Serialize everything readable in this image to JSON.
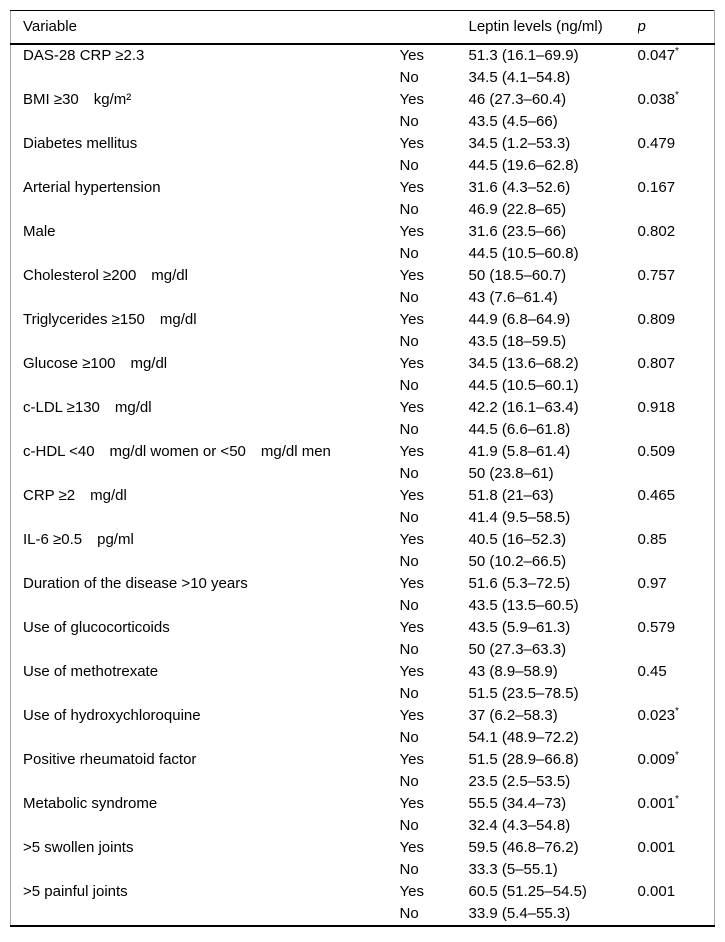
{
  "table": {
    "header": {
      "variable": "Variable",
      "yesno": "",
      "leptin": "Leptin levels (ng/ml)",
      "p": "p"
    },
    "labels": {
      "yes": "Yes",
      "no": "No"
    },
    "rows": [
      {
        "variable": "DAS-28 CRP ≥2.3",
        "yes_value": "51.3 (16.1–69.9)",
        "no_value": "34.5 (4.1–54.8)",
        "p": "0.047",
        "star": "*"
      },
      {
        "variable": "BMI ≥30 kg/m²",
        "yes_value": "46 (27.3–60.4)",
        "no_value": "43.5 (4.5–66)",
        "p": "0.038",
        "star": "*"
      },
      {
        "variable": "Diabetes mellitus",
        "yes_value": "34.5 (1.2–53.3)",
        "no_value": "44.5 (19.6–62.8)",
        "p": "0.479"
      },
      {
        "variable": "Arterial hypertension",
        "yes_value": "31.6 (4.3–52.6)",
        "no_value": "46.9 (22.8–65)",
        "p": "0.167"
      },
      {
        "variable": "Male",
        "yes_value": "31.6 (23.5–66)",
        "no_value": "44.5 (10.5–60.8)",
        "p": "0.802"
      },
      {
        "variable": "Cholesterol ≥200 mg/dl",
        "yes_value": "50 (18.5–60.7)",
        "no_value": "43 (7.6–61.4)",
        "p": "0.757"
      },
      {
        "variable": "Triglycerides ≥150 mg/dl",
        "yes_value": "44.9 (6.8–64.9)",
        "no_value": "43.5 (18–59.5)",
        "p": "0.809"
      },
      {
        "variable": "Glucose ≥100 mg/dl",
        "yes_value": "34.5 (13.6–68.2)",
        "no_value": "44.5 (10.5–60.1)",
        "p": "0.807"
      },
      {
        "variable": "c-LDL ≥130 mg/dl",
        "yes_value": "42.2 (16.1–63.4)",
        "no_value": "44.5 (6.6–61.8)",
        "p": "0.918"
      },
      {
        "variable": "c-HDL <40 mg/dl women or <50 mg/dl men",
        "yes_value": "41.9 (5.8–61.4)",
        "no_value": "50 (23.8–61)",
        "p": "0.509"
      },
      {
        "variable": "CRP ≥2 mg/dl",
        "yes_value": "51.8 (21–63)",
        "no_value": "41.4 (9.5–58.5)",
        "p": "0.465"
      },
      {
        "variable": "IL-6 ≥0.5 pg/ml",
        "yes_value": "40.5 (16–52.3)",
        "no_value": "50 (10.2–66.5)",
        "p": "0.85"
      },
      {
        "variable": "Duration of the disease >10 years",
        "yes_value": "51.6 (5.3–72.5)",
        "no_value": "43.5 (13.5–60.5)",
        "p": "0.97"
      },
      {
        "variable": "Use of glucocorticoids",
        "yes_value": "43.5 (5.9–61.3)",
        "no_value": "50 (27.3–63.3)",
        "p": "0.579"
      },
      {
        "variable": "Use of methotrexate",
        "yes_value": "43 (8.9–58.9)",
        "no_value": "51.5 (23.5–78.5)",
        "p": "0.45"
      },
      {
        "variable": "Use of hydroxychloroquine",
        "yes_value": "37 (6.2–58.3)",
        "no_value": "54.1 (48.9–72.2)",
        "p": "0.023",
        "star": "*"
      },
      {
        "variable": "Positive rheumatoid factor",
        "yes_value": "51.5 (28.9–66.8)",
        "no_value": "23.5 (2.5–53.5)",
        "p": "0.009",
        "star": "*"
      },
      {
        "variable": "Metabolic syndrome",
        "yes_value": "55.5 (34.4–73)",
        "no_value": "32.4 (4.3–54.8)",
        "p": "0.001",
        "star": "*"
      },
      {
        "variable": ">5 swollen joints",
        "yes_value": "59.5 (46.8–76.2)",
        "no_value": "33.3 (5–55.1)",
        "p": "0.001"
      },
      {
        "variable": ">5 painful joints",
        "yes_value": "60.5 (51.25–54.5)",
        "no_value": "33.9 (5.4–55.3)",
        "p": "0.001"
      }
    ],
    "colors": {
      "border_black": "#000000",
      "border_gray": "#a6a6a6",
      "text": "#000000",
      "background": "#ffffff"
    }
  }
}
